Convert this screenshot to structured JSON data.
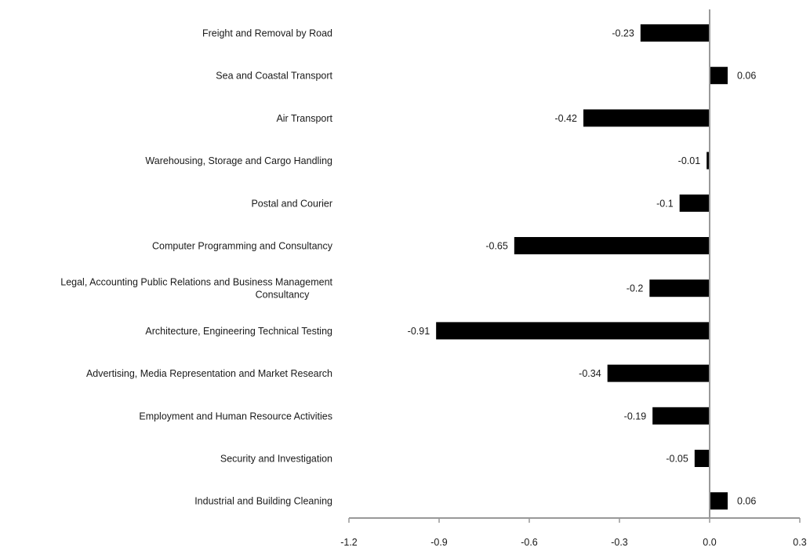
{
  "chart_data": {
    "type": "bar",
    "orientation": "horizontal",
    "title": "",
    "xlabel": "",
    "ylabel": "",
    "categories": [
      "Freight and Removal by Road",
      "Sea and Coastal Transport",
      "Air Transport",
      "Warehousing, Storage and Cargo Handling",
      "Postal and Courier",
      "Computer Programming and Consultancy",
      "Legal, Accounting Public Relations and Business Management Consultancy",
      "Architecture, Engineering Technical Testing",
      "Advertising, Media Representation and Market Research",
      "Employment and Human Resource Activities",
      "Security and Investigation",
      "Industrial and Building Cleaning"
    ],
    "values": [
      -0.23,
      0.06,
      -0.42,
      -0.01,
      -0.1,
      -0.65,
      -0.2,
      -0.91,
      -0.34,
      -0.19,
      -0.05,
      0.06
    ],
    "data_labels": [
      "-0.23",
      "0.06",
      "-0.42",
      "-0.01",
      "-0.1",
      "-0.65",
      "-0.2",
      "-0.91",
      "-0.34",
      "-0.19",
      "-0.05",
      "0.06"
    ],
    "xlim": [
      -1.2,
      0.3
    ],
    "xticks": [
      -1.2,
      -0.9,
      -0.6,
      -0.3,
      0.0,
      0.3
    ],
    "xtick_labels": [
      "-1.2",
      "-0.9",
      "-0.6",
      "-0.3",
      "0.0",
      "0.3"
    ],
    "grid": false,
    "legend": "none",
    "colors": {
      "bar": "#000000",
      "axis": "#999999"
    }
  }
}
